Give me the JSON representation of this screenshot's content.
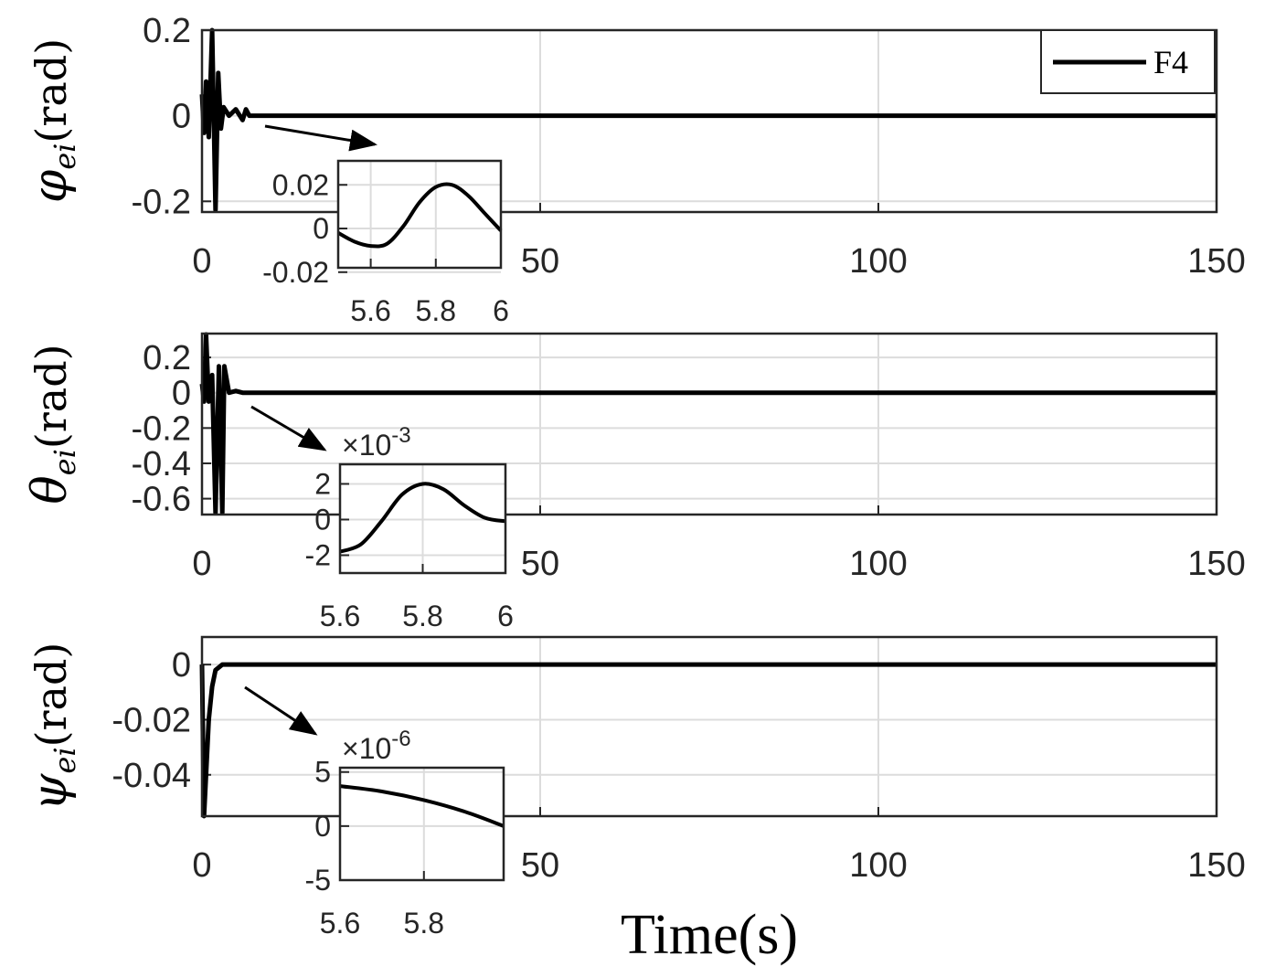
{
  "chart_data": [
    {
      "type": "line",
      "ylabel": "φei(rad)",
      "ylabel_symbol": "φ",
      "ylabel_sub": "ei",
      "ylabel_unit": "(rad)",
      "xlim": [
        0,
        150
      ],
      "ylim": [
        -0.225,
        0.2
      ],
      "xticks": [
        0,
        50,
        100,
        150
      ],
      "xticklabels": [
        "0",
        "50",
        "100",
        "150"
      ],
      "yticks": [
        0.2,
        0,
        -0.2
      ],
      "yticklabels": [
        "0.2",
        "0",
        "-0.2"
      ],
      "grid": true,
      "legend": {
        "entries": [
          "F4"
        ],
        "placement": "top-right"
      },
      "series": [
        {
          "name": "F4",
          "x": [
            0,
            0.3,
            0.6,
            1,
            1.5,
            2,
            2.4,
            2.8,
            3.2,
            4,
            5,
            6,
            6.5,
            7,
            8,
            150
          ],
          "y": [
            0.05,
            -0.04,
            0.08,
            -0.05,
            0.2,
            -0.22,
            0.1,
            -0.03,
            0.02,
            0,
            0.015,
            -0.01,
            0.015,
            0,
            0,
            0
          ]
        }
      ],
      "inset": {
        "xlim": [
          5.5,
          6
        ],
        "ylim": [
          -0.018,
          0.031
        ],
        "xticks": [
          5.6,
          5.8,
          6
        ],
        "xticklabels": [
          "5.6",
          "5.8",
          "6"
        ],
        "yticks": [
          0.02,
          0,
          -0.02
        ],
        "yticklabels": [
          "0.02",
          "0",
          "-0.02"
        ],
        "exponent": "",
        "x": [
          5.5,
          5.55,
          5.6,
          5.65,
          5.7,
          5.75,
          5.8,
          5.85,
          5.9,
          5.95,
          6
        ],
        "y": [
          -0.002,
          -0.006,
          -0.008,
          -0.007,
          0.001,
          0.012,
          0.019,
          0.02,
          0.015,
          0.007,
          -0.001
        ]
      }
    },
    {
      "type": "line",
      "ylabel": "θei(rad)",
      "ylabel_symbol": "θ",
      "ylabel_sub": "ei",
      "ylabel_unit": "(rad)",
      "xlim": [
        0,
        150
      ],
      "ylim": [
        -0.69,
        0.335
      ],
      "xticks": [
        0,
        50,
        100,
        150
      ],
      "xticklabels": [
        "0",
        "50",
        "100",
        "150"
      ],
      "yticks": [
        0.2,
        0,
        -0.2,
        -0.4,
        -0.6
      ],
      "yticklabels": [
        "0.2",
        "0",
        "-0.2",
        "-0.4",
        "-0.6"
      ],
      "grid": true,
      "series": [
        {
          "name": "F4",
          "x": [
            0,
            0.3,
            0.6,
            1,
            1.5,
            2,
            2.5,
            3,
            3.3,
            4,
            5,
            6,
            150
          ],
          "y": [
            0.05,
            -0.05,
            0.33,
            -0.05,
            0.1,
            -0.68,
            0.15,
            -0.68,
            0.15,
            0,
            0.01,
            0,
            0
          ]
        }
      ],
      "inset": {
        "xlim": [
          5.6,
          6
        ],
        "ylim": [
          -3.0,
          3.1
        ],
        "xticks": [
          5.6,
          5.8,
          6
        ],
        "xticklabels": [
          "5.6",
          "5.8",
          "6"
        ],
        "yticks": [
          2,
          0,
          -2
        ],
        "yticklabels": [
          "2",
          "0",
          "-2"
        ],
        "exponent": "×10-3",
        "exponent_base": "×10",
        "exponent_power": "-3",
        "x": [
          5.6,
          5.65,
          5.7,
          5.75,
          5.8,
          5.85,
          5.9,
          5.95,
          6
        ],
        "y": [
          -1.8,
          -1.4,
          -0.1,
          1.4,
          2.0,
          1.7,
          0.8,
          0.1,
          -0.1
        ]
      }
    },
    {
      "type": "line",
      "ylabel": "ψei(rad)",
      "ylabel_symbol": "ψ",
      "ylabel_sub": "ei",
      "ylabel_unit": "(rad)",
      "xlabel": "Time(s)",
      "xlim": [
        0,
        150
      ],
      "ylim": [
        -0.055,
        0.01
      ],
      "xticks": [
        0,
        50,
        100,
        150
      ],
      "xticklabels": [
        "0",
        "50",
        "100",
        "150"
      ],
      "yticks": [
        0,
        -0.02,
        -0.04
      ],
      "yticklabels": [
        "0",
        "-0.02",
        "-0.04"
      ],
      "grid": true,
      "series": [
        {
          "name": "F4",
          "x": [
            0,
            0.3,
            0.6,
            1,
            1.5,
            2,
            3,
            150
          ],
          "y": [
            0,
            -0.055,
            -0.04,
            -0.02,
            -0.008,
            -0.002,
            0,
            0
          ]
        }
      ],
      "inset": {
        "xlim": [
          5.6,
          5.99
        ],
        "ylim": [
          -5,
          5.4
        ],
        "xticks": [
          5.6,
          5.8
        ],
        "xticklabels": [
          "5.6",
          "5.8"
        ],
        "yticks": [
          5,
          0,
          -5
        ],
        "yticklabels": [
          "5",
          "0",
          "-5"
        ],
        "exponent": "×10-6",
        "exponent_base": "×10",
        "exponent_power": "-6",
        "x": [
          5.6,
          5.7,
          5.8,
          5.9,
          5.99
        ],
        "y": [
          3.7,
          3.2,
          2.4,
          1.3,
          0
        ]
      }
    }
  ],
  "colors": {
    "line": "#000000",
    "axis": "#262626",
    "grid": "#dcdcdc"
  }
}
